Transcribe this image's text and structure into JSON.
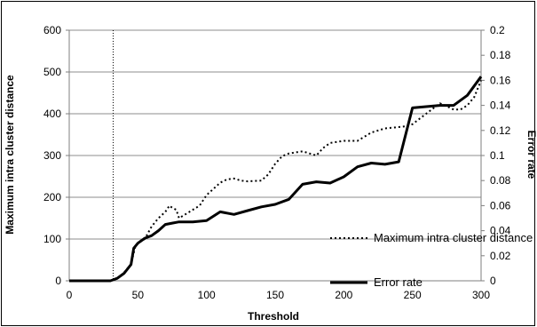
{
  "chart_data": {
    "type": "line",
    "title": "",
    "xlabel": "Threshold",
    "ylabel_left": "Maximum intra cluster distance",
    "ylabel_right": "Error rate",
    "xlim": [
      0,
      300
    ],
    "ylim_left": [
      0,
      600
    ],
    "ylim_right": [
      0,
      0.2
    ],
    "x_ticks": [
      "0",
      "50",
      "100",
      "150",
      "200",
      "250",
      "300"
    ],
    "y_left_ticks": [
      "0",
      "100",
      "200",
      "300",
      "400",
      "500",
      "600"
    ],
    "y_right_ticks": [
      "0",
      "0.02",
      "0.04",
      "0.06",
      "0.08",
      "0.1",
      "0.12",
      "0.14",
      "0.16",
      "0.18",
      "0.2"
    ],
    "grid": "horizontal",
    "legend_position": "right",
    "vertical_marker_x": 32,
    "series": [
      {
        "name": "Maximum intra cluster distance",
        "axis": "left",
        "style": "dotted",
        "points": [
          [
            0,
            0
          ],
          [
            10,
            0
          ],
          [
            20,
            0
          ],
          [
            30,
            0
          ],
          [
            35,
            5
          ],
          [
            40,
            20
          ],
          [
            45,
            40
          ],
          [
            48,
            80
          ],
          [
            50,
            90
          ],
          [
            55,
            100
          ],
          [
            60,
            130
          ],
          [
            65,
            150
          ],
          [
            70,
            165
          ],
          [
            73,
            180
          ],
          [
            75,
            175
          ],
          [
            78,
            170
          ],
          [
            80,
            150
          ],
          [
            85,
            160
          ],
          [
            90,
            170
          ],
          [
            95,
            180
          ],
          [
            100,
            205
          ],
          [
            105,
            220
          ],
          [
            110,
            235
          ],
          [
            115,
            243
          ],
          [
            120,
            245
          ],
          [
            125,
            240
          ],
          [
            130,
            238
          ],
          [
            140,
            240
          ],
          [
            145,
            255
          ],
          [
            150,
            280
          ],
          [
            155,
            298
          ],
          [
            160,
            305
          ],
          [
            170,
            310
          ],
          [
            175,
            305
          ],
          [
            180,
            300
          ],
          [
            185,
            318
          ],
          [
            190,
            330
          ],
          [
            200,
            335
          ],
          [
            210,
            335
          ],
          [
            220,
            355
          ],
          [
            230,
            365
          ],
          [
            240,
            368
          ],
          [
            245,
            370
          ],
          [
            250,
            375
          ],
          [
            260,
            400
          ],
          [
            270,
            425
          ],
          [
            275,
            418
          ],
          [
            280,
            410
          ],
          [
            285,
            410
          ],
          [
            290,
            420
          ],
          [
            295,
            440
          ],
          [
            300,
            480
          ]
        ]
      },
      {
        "name": "Error rate",
        "axis": "right",
        "style": "solid",
        "points": [
          [
            0,
            0
          ],
          [
            10,
            0
          ],
          [
            20,
            0
          ],
          [
            30,
            0
          ],
          [
            35,
            0.002
          ],
          [
            40,
            0.006
          ],
          [
            45,
            0.013
          ],
          [
            47,
            0.026
          ],
          [
            50,
            0.03
          ],
          [
            55,
            0.034
          ],
          [
            60,
            0.036
          ],
          [
            65,
            0.04
          ],
          [
            70,
            0.045
          ],
          [
            75,
            0.046
          ],
          [
            80,
            0.047
          ],
          [
            85,
            0.047
          ],
          [
            90,
            0.047
          ],
          [
            100,
            0.048
          ],
          [
            110,
            0.055
          ],
          [
            120,
            0.053
          ],
          [
            130,
            0.056
          ],
          [
            140,
            0.059
          ],
          [
            150,
            0.061
          ],
          [
            160,
            0.065
          ],
          [
            170,
            0.077
          ],
          [
            180,
            0.079
          ],
          [
            190,
            0.078
          ],
          [
            200,
            0.083
          ],
          [
            210,
            0.091
          ],
          [
            220,
            0.094
          ],
          [
            230,
            0.093
          ],
          [
            240,
            0.095
          ],
          [
            250,
            0.138
          ],
          [
            260,
            0.139
          ],
          [
            270,
            0.14
          ],
          [
            280,
            0.14
          ],
          [
            290,
            0.148
          ],
          [
            300,
            0.163
          ]
        ]
      }
    ]
  }
}
